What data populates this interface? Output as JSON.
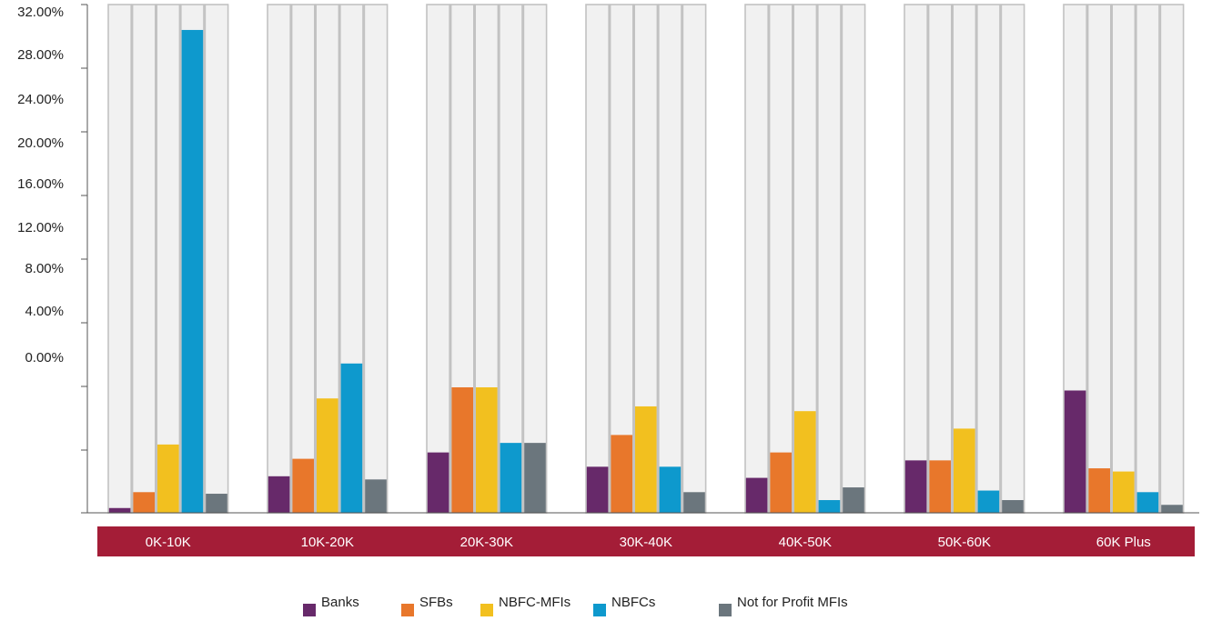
{
  "chart_data": {
    "type": "bar",
    "y_tick_labels": [
      "32.00%",
      "28.00%",
      "24.00%",
      "20.00%",
      "16.00%",
      "12.00%",
      "8.00%",
      "4.00%",
      "0.00%"
    ],
    "ylim": [
      0,
      32
    ],
    "categories": [
      "0K-10K",
      "10K-20K",
      "20K-30K",
      "30K-40K",
      "40K-50K",
      "50K-60K",
      "60K Plus"
    ],
    "series": [
      {
        "name": "Banks",
        "color": "#67296a",
        "values": [
          0.3,
          2.3,
          3.8,
          2.9,
          2.2,
          3.3,
          7.7
        ]
      },
      {
        "name": "SFBs",
        "color": "#e8772b",
        "values": [
          1.3,
          3.4,
          7.9,
          4.9,
          3.8,
          3.3,
          2.8
        ]
      },
      {
        "name": "NBFC-MFIs",
        "color": "#f2c01f",
        "values": [
          4.3,
          7.2,
          7.9,
          6.7,
          6.4,
          5.3,
          2.6
        ]
      },
      {
        "name": "NBFCs",
        "color": "#0e99cd",
        "values": [
          30.4,
          9.4,
          4.4,
          2.9,
          0.8,
          1.4,
          1.3
        ]
      },
      {
        "name": "Not for Profit MFIs",
        "color": "#6b767d",
        "values": [
          1.2,
          2.1,
          4.4,
          1.3,
          1.6,
          0.8,
          0.5
        ]
      }
    ],
    "background_slot_color": "#f1f1f1",
    "category_band_color": "#a41d37",
    "legend_position": "bottom-center",
    "grid": false
  }
}
